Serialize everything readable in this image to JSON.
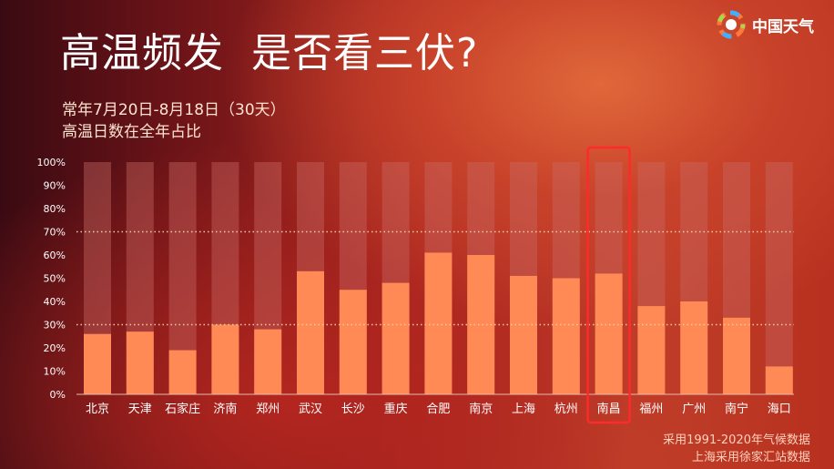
{
  "header": {
    "title": "高温频发  是否看三伏?",
    "subtitle_line1": "常年7月20日-8月18日（30天）",
    "subtitle_line2": "高温日数在全年占比",
    "brand": "中国天气"
  },
  "footnotes": {
    "line1": "采用1991-2020年气候数据",
    "line2": "上海采用徐家汇站数据"
  },
  "colors": {
    "bar": "#ff8a55",
    "track": "#c96a63",
    "highlight_box": "#ff2a2a",
    "reference_line": "#f2c9a8"
  },
  "chart_data": {
    "type": "bar",
    "unit": "%",
    "categories": [
      "北京",
      "天津",
      "石家庄",
      "济南",
      "郑州",
      "武汉",
      "长沙",
      "重庆",
      "合肥",
      "南京",
      "上海",
      "杭州",
      "南昌",
      "福州",
      "广州",
      "南宁",
      "海口"
    ],
    "values": [
      26,
      27,
      19,
      30,
      28,
      53,
      45,
      48,
      61,
      60,
      51,
      50,
      52,
      38,
      40,
      33,
      12
    ],
    "ylim": [
      0,
      100
    ],
    "yticks": [
      "0%",
      "10%",
      "20%",
      "30%",
      "40%",
      "50%",
      "60%",
      "70%",
      "80%",
      "90%",
      "100%"
    ],
    "reference_lines": [
      30,
      70
    ],
    "highlighted_category": "南昌",
    "grid": false,
    "legend": "none"
  }
}
